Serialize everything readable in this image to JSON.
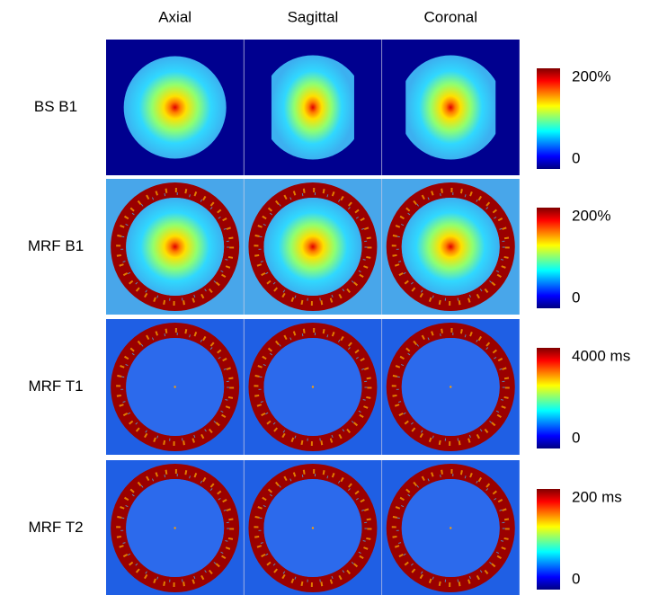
{
  "columns": [
    "Axial",
    "Sagittal",
    "Coronal"
  ],
  "rows": [
    {
      "label": "BS B1",
      "colorbar": {
        "max": "200%",
        "min": "0"
      }
    },
    {
      "label": "MRF B1",
      "colorbar": {
        "max": "200%",
        "min": "0"
      }
    },
    {
      "label": "MRF T1",
      "colorbar": {
        "max": "4000 ms",
        "min": "0"
      }
    },
    {
      "label": "MRF T2",
      "colorbar": {
        "max": "200 ms",
        "min": "0"
      }
    }
  ]
}
